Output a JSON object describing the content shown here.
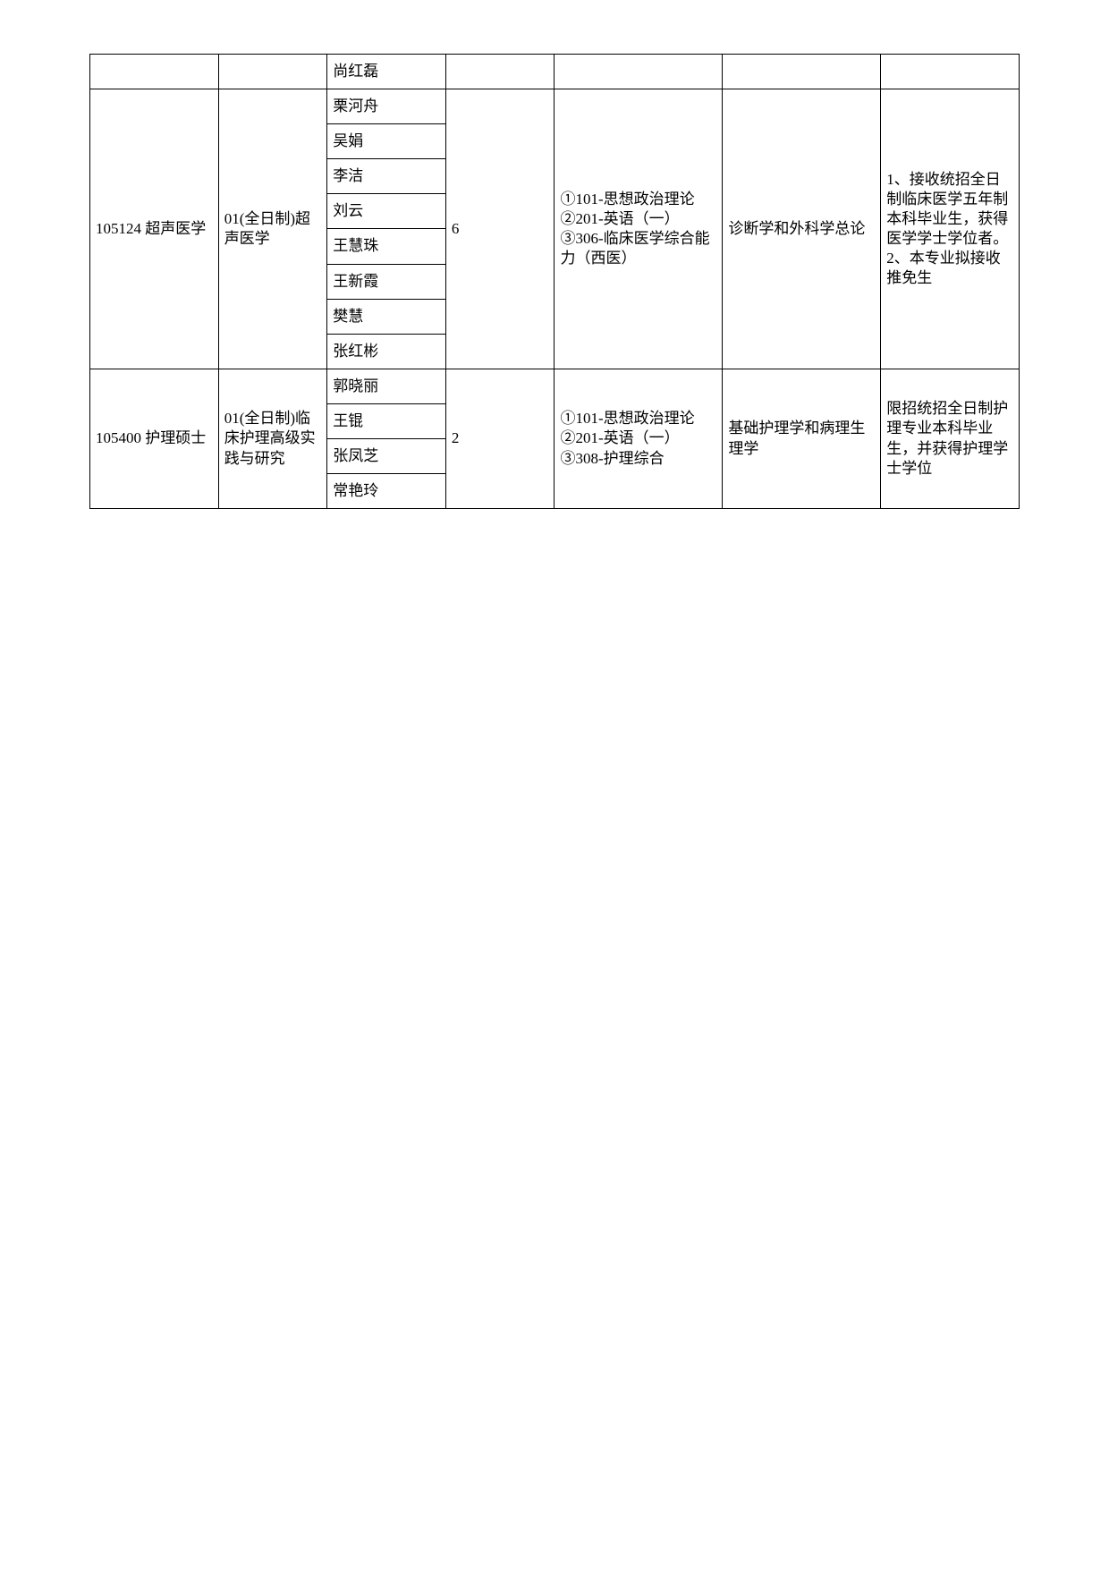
{
  "table": {
    "row0_name": "尚红磊",
    "section1": {
      "code": "105124 超声医学",
      "direction": "01(全日制)超声医学",
      "names": [
        "栗河舟",
        "吴娟",
        "李洁",
        "刘云",
        "王慧珠",
        "王新霞",
        "樊慧",
        "张红彬"
      ],
      "count": "6",
      "exam": "①101-思想政治理论\n②201-英语（一）\n③306-临床医学综合能力（西医）",
      "subject": "诊断学和外科学总论",
      "notes": "1、接收统招全日制临床医学五年制本科毕业生，获得医学学士学位者。\n2、本专业拟接收推免生"
    },
    "section2": {
      "code": "105400 护理硕士",
      "direction": "01(全日制)临床护理高级实践与研究",
      "names": [
        "郭晓丽",
        "王锟",
        "张凤芝",
        "常艳玲"
      ],
      "count": "2",
      "exam": "①101-思想政治理论\n②201-英语（一）\n③308-护理综合",
      "subject": "基础护理学和病理生理学",
      "notes": "限招统招全日制护理专业本科毕业生，并获得护理学士学位"
    }
  },
  "styles": {
    "border_color": "#000000",
    "background": "#ffffff",
    "font_size": 17
  }
}
